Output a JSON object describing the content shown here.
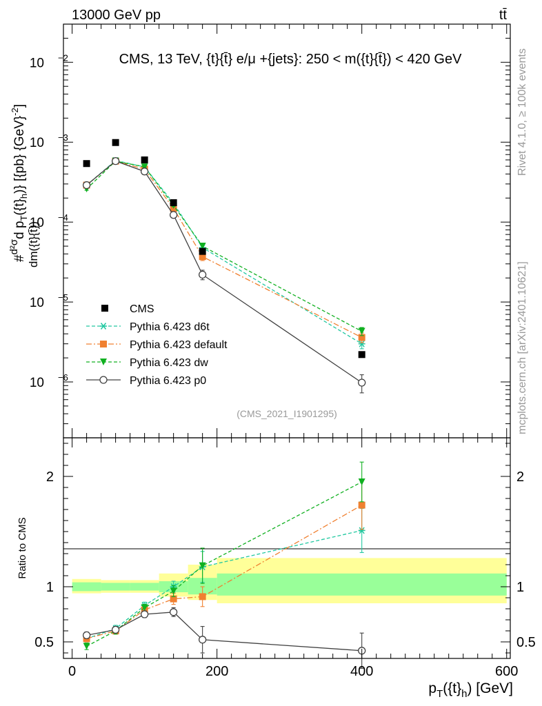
{
  "header": {
    "left": "13000 GeV pp",
    "right": "tt̄"
  },
  "side_labels": {
    "rivet": "Rivet 4.1.0, ≥ 100k events",
    "mcplots": "mcplots.cern.ch [arXiv:2401.10621]"
  },
  "chart_data": [
    {
      "type": "scatter",
      "panel": "main",
      "title": "CMS, 13 TeV, {t}{t̄} e/μ +{jets}: 250 < m({t}{t̄}) < 420 GeV",
      "ylabel": "#d²σ/dm({t}{t̄}) d p_T({t}_h)} [{pb} {GeV}^{-2}]",
      "ylabel_parts": {
        "prefix": "#",
        "num": "d²σ",
        "den": "dm({t}{t̄})",
        "rest": "d p",
        "sub1": "T",
        "mid": "({t}",
        "sub2": "h",
        "tail": ")} [{pb} {GeV}",
        "exp": "-2",
        "end": "]"
      },
      "yscale": "log",
      "ylim": [
        2e-07,
        0.03
      ],
      "xlim": [
        -12,
        605
      ],
      "ytick_labels": [
        {
          "value": 1e-06,
          "base": "10",
          "exp": "−6"
        },
        {
          "value": 1e-05,
          "base": "10",
          "exp": "−5"
        },
        {
          "value": 0.0001,
          "base": "10",
          "exp": "−4"
        },
        {
          "value": 0.001,
          "base": "10",
          "exp": "−3"
        },
        {
          "value": 0.01,
          "base": "10",
          "exp": "−2"
        }
      ],
      "watermark": "(CMS_2021_I1901295)",
      "legend_position": "bottom-left",
      "series": [
        {
          "name": "CMS",
          "color": "#000000",
          "marker": "square",
          "line": "none",
          "x": [
            20,
            60,
            100,
            140,
            180,
            400
          ],
          "y": [
            0.00054,
            0.00099,
            0.0006,
            0.000175,
            4.3e-05,
            2.2e-06
          ]
        },
        {
          "name": "Pythia 6.423 d6t",
          "color": "#20c8a0",
          "marker": "star",
          "line": "dashed",
          "x": [
            20,
            60,
            100,
            140,
            180,
            400
          ],
          "y": [
            0.00029,
            0.00059,
            0.00049,
            0.000172,
            4.8e-05,
            3e-06
          ],
          "yerr": [
            1e-05,
            1e-05,
            1e-05,
            6e-06,
            4e-06,
            4e-07
          ]
        },
        {
          "name": "Pythia 6.423 default",
          "color": "#f08030",
          "marker": "square",
          "line": "dashdot",
          "x": [
            20,
            60,
            100,
            140,
            180,
            400
          ],
          "y": [
            0.00029,
            0.00058,
            0.00046,
            0.000148,
            3.7e-05,
            3.6e-06
          ],
          "yerr": [
            1e-05,
            1e-05,
            1e-05,
            6e-06,
            4e-06,
            5e-07
          ]
        },
        {
          "name": "Pythia 6.423 dw",
          "color": "#10b020",
          "marker": "triangle-down",
          "line": "dashed",
          "x": [
            20,
            60,
            100,
            140,
            180,
            400
          ],
          "y": [
            0.00026,
            0.00058,
            0.00049,
            0.000162,
            5e-05,
            4.3e-06
          ],
          "yerr": [
            1e-05,
            1e-05,
            1e-05,
            6e-06,
            4e-06,
            5e-07
          ]
        },
        {
          "name": "Pythia 6.423 p0",
          "color": "#404040",
          "marker": "open-circle",
          "line": "solid",
          "x": [
            20,
            60,
            100,
            140,
            180,
            400
          ],
          "y": [
            0.00029,
            0.00058,
            0.00043,
            0.000123,
            2.2e-05,
            9.8e-07
          ],
          "yerr": [
            1e-05,
            1e-05,
            1e-05,
            8e-06,
            3e-06,
            2.5e-07
          ]
        }
      ]
    },
    {
      "type": "scatter",
      "panel": "ratio",
      "ylabel": "Ratio to CMS",
      "xlabel": "p_T({t}_h) [GeV]",
      "xlabel_parts": {
        "p": "p",
        "sub1": "T",
        "mid": "({t}",
        "sub2": "h",
        "end": ") [GeV]"
      },
      "ylim": [
        0.35,
        2.35
      ],
      "xlim": [
        -12,
        605
      ],
      "xticks": [
        0,
        200,
        400,
        600
      ],
      "xtick_labels": [
        "0",
        "200",
        "400",
        "600"
      ],
      "yticks": [
        0.5,
        1,
        2
      ],
      "ytick_labels": [
        "0.5",
        "1",
        "2"
      ],
      "uncertainty_bands": [
        {
          "x0": 0,
          "x1": 40,
          "stat_lo": 0.96,
          "stat_hi": 1.04,
          "tot_lo": 0.94,
          "tot_hi": 1.07
        },
        {
          "x0": 40,
          "x1": 80,
          "stat_lo": 0.965,
          "stat_hi": 1.035,
          "tot_lo": 0.945,
          "tot_hi": 1.06
        },
        {
          "x0": 80,
          "x1": 120,
          "stat_lo": 0.965,
          "stat_hi": 1.035,
          "tot_lo": 0.945,
          "tot_hi": 1.06
        },
        {
          "x0": 120,
          "x1": 160,
          "stat_lo": 0.95,
          "stat_hi": 1.05,
          "tot_lo": 0.91,
          "tot_hi": 1.12
        },
        {
          "x0": 160,
          "x1": 200,
          "stat_lo": 0.93,
          "stat_hi": 1.08,
          "tot_lo": 0.88,
          "tot_hi": 1.2
        },
        {
          "x0": 200,
          "x1": 600,
          "stat_lo": 0.92,
          "stat_hi": 1.12,
          "tot_lo": 0.85,
          "tot_hi": 1.26
        }
      ],
      "series": [
        {
          "name": "Pythia 6.423 d6t",
          "color": "#20c8a0",
          "marker": "star",
          "line": "dashed",
          "x": [
            20,
            60,
            100,
            140,
            180,
            400
          ],
          "y": [
            0.53,
            0.62,
            0.83,
            1.0,
            1.18,
            1.51
          ],
          "yerr": [
            0.03,
            0.03,
            0.03,
            0.05,
            0.14,
            0.2
          ]
        },
        {
          "name": "Pythia 6.423 default",
          "color": "#f08030",
          "marker": "square",
          "line": "dashdot",
          "x": [
            20,
            60,
            100,
            140,
            180,
            400
          ],
          "y": [
            0.53,
            0.6,
            0.79,
            0.89,
            0.91,
            1.74
          ],
          "yerr": [
            0.03,
            0.03,
            0.03,
            0.05,
            0.09,
            0.22
          ]
        },
        {
          "name": "Pythia 6.423 dw",
          "color": "#10b020",
          "marker": "triangle-down",
          "line": "dashed",
          "x": [
            20,
            60,
            100,
            140,
            180,
            400
          ],
          "y": [
            0.46,
            0.6,
            0.81,
            0.96,
            1.19,
            1.95
          ],
          "yerr": [
            0.03,
            0.03,
            0.03,
            0.05,
            0.16,
            0.18
          ]
        },
        {
          "name": "Pythia 6.423 p0",
          "color": "#404040",
          "marker": "open-circle",
          "line": "solid",
          "x": [
            20,
            60,
            100,
            140,
            180,
            400
          ],
          "y": [
            0.56,
            0.61,
            0.75,
            0.77,
            0.52,
            0.42
          ],
          "yerr": [
            0.03,
            0.03,
            0.03,
            0.04,
            0.12,
            0.16
          ]
        }
      ]
    }
  ]
}
